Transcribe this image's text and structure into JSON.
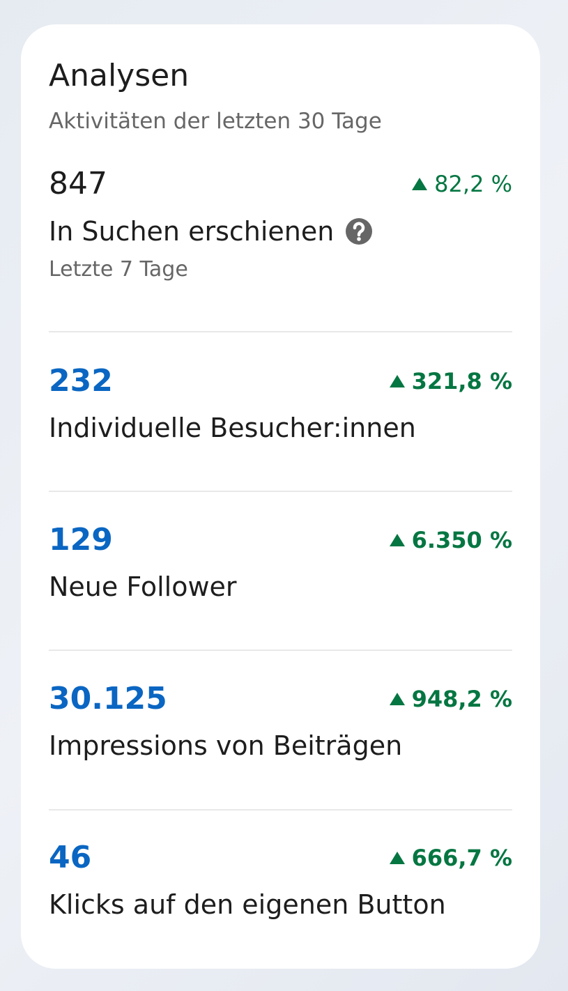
{
  "header": {
    "title": "Analysen",
    "subtitle": "Aktivitäten der letzten 30 Tage"
  },
  "metrics": [
    {
      "value": "847",
      "change": "82,2 %",
      "label": "In Suchen erschienen",
      "note": "Letzte 7 Tage"
    },
    {
      "value": "232",
      "change": "321,8 %",
      "label": "Individuelle Besucher:innen"
    },
    {
      "value": "129",
      "change": "6.350 %",
      "label": "Neue Follower"
    },
    {
      "value": "30.125",
      "change": "948,2 %",
      "label": "Impressions von Beiträgen"
    },
    {
      "value": "46",
      "change": "666,7 %",
      "label": "Klicks auf den eigenen Button"
    }
  ]
}
